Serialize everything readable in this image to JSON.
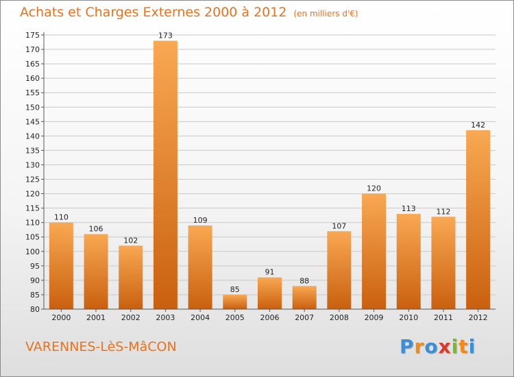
{
  "title": "Achats et Charges Externes 2000 à 2012",
  "unit": "(en milliers d'€)",
  "town": "VARENNES-LèS-MâCON",
  "logo": {
    "letters": [
      "P",
      "r",
      "o",
      "x",
      "i",
      "t",
      "i"
    ],
    "colors": [
      "#3a8fd6",
      "#f08a1c",
      "#3a8fd6",
      "#d93a2a",
      "#7ab82e",
      "#f08a1c",
      "#3a8fd6"
    ]
  },
  "colors": {
    "accent": "#e8731e",
    "bar_light": "#f7a34d",
    "bar_dark": "#c45f10",
    "grid": "#c8c8c8"
  },
  "chart_data": {
    "type": "bar",
    "categories": [
      "2000",
      "2001",
      "2002",
      "2003",
      "2004",
      "2005",
      "2006",
      "2007",
      "2008",
      "2009",
      "2010",
      "2011",
      "2012"
    ],
    "values": [
      110,
      106,
      102,
      173,
      109,
      85,
      91,
      88,
      107,
      120,
      113,
      112,
      142
    ],
    "ylim": [
      80,
      175
    ],
    "yticks": [
      80,
      85,
      90,
      95,
      100,
      105,
      110,
      115,
      120,
      125,
      130,
      135,
      140,
      145,
      150,
      155,
      160,
      165,
      170,
      175
    ],
    "grid": "horizontal",
    "data_labels": true,
    "xlabel": "",
    "ylabel": ""
  }
}
